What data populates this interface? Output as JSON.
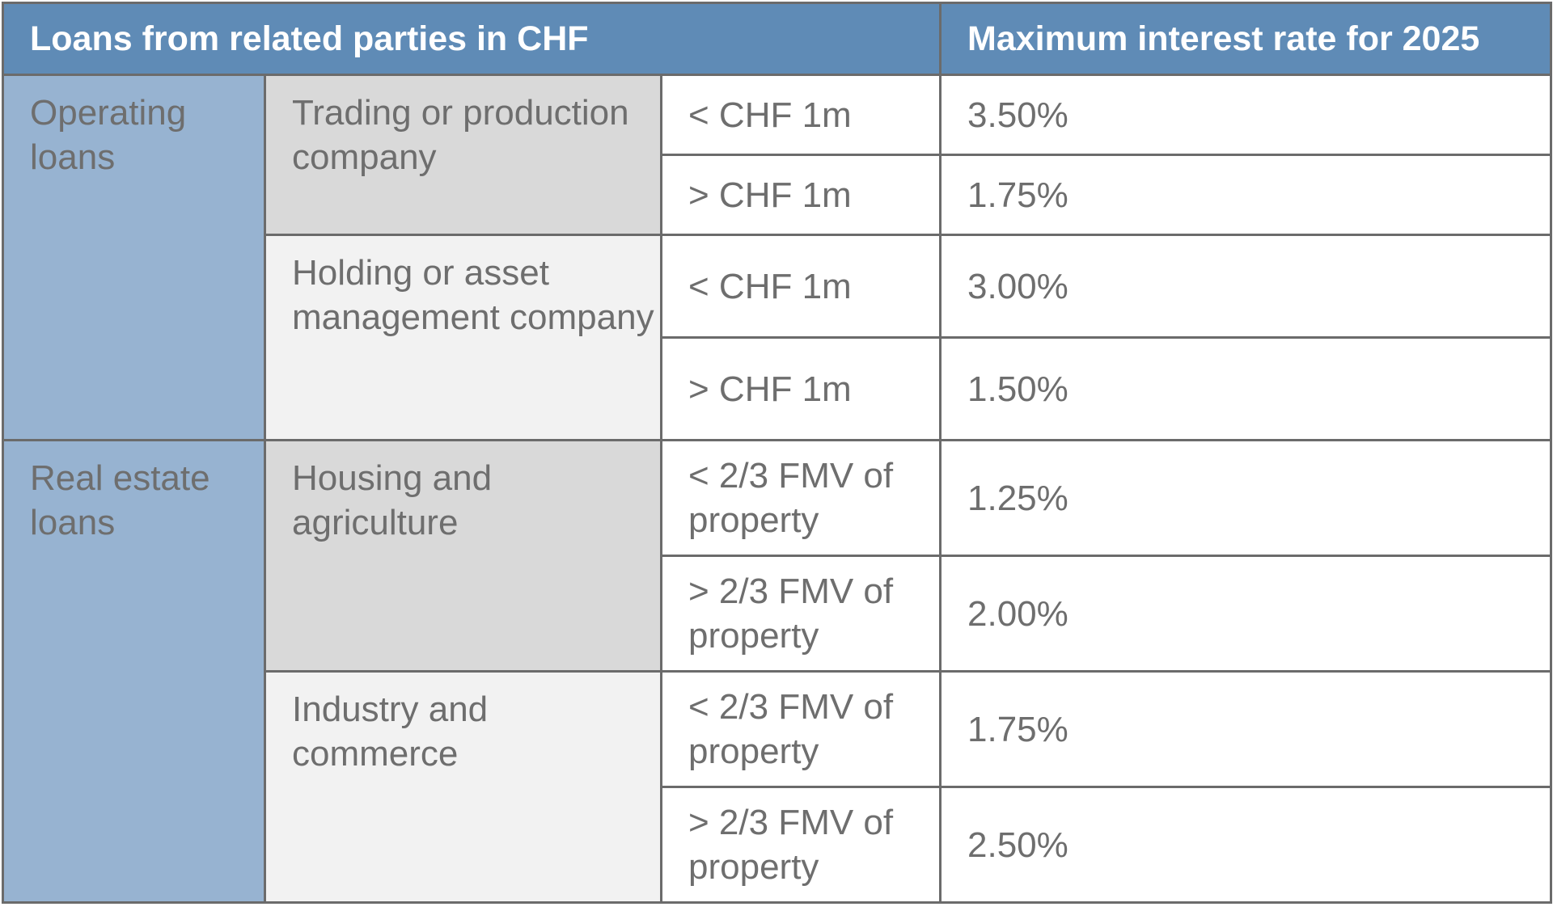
{
  "header": {
    "title": "Loans from related parties in CHF",
    "rate_column": "Maximum interest rate for 2025"
  },
  "groups": [
    {
      "category": "Operating loans",
      "subgroups": [
        {
          "type": "Trading or production company",
          "rows": [
            {
              "condition": "< CHF 1m",
              "rate": "3.50%"
            },
            {
              "condition": "> CHF 1m",
              "rate": "1.75%"
            }
          ]
        },
        {
          "type": "Holding or asset management company",
          "rows": [
            {
              "condition": "< CHF 1m",
              "rate": "3.00%"
            },
            {
              "condition": "> CHF 1m",
              "rate": "1.50%"
            }
          ]
        }
      ]
    },
    {
      "category": "Real estate loans",
      "subgroups": [
        {
          "type": "Housing and agriculture",
          "rows": [
            {
              "condition": "< 2/3 FMV of property",
              "rate": "1.25%"
            },
            {
              "condition": "> 2/3 FMV of property",
              "rate": "2.00%"
            }
          ]
        },
        {
          "type": "Industry and commerce",
          "rows": [
            {
              "condition": "< 2/3 FMV of property",
              "rate": "1.75%"
            },
            {
              "condition": "> 2/3 FMV of property",
              "rate": "2.50%"
            }
          ]
        }
      ]
    }
  ],
  "colors": {
    "header_bg": "#5f8bb6",
    "category_bg": "#97b3d1",
    "subgroup_dark_bg": "#d9d9d9",
    "subgroup_light_bg": "#f2f2f2",
    "border": "#6b6b6b",
    "text": "#6e6e6e"
  }
}
